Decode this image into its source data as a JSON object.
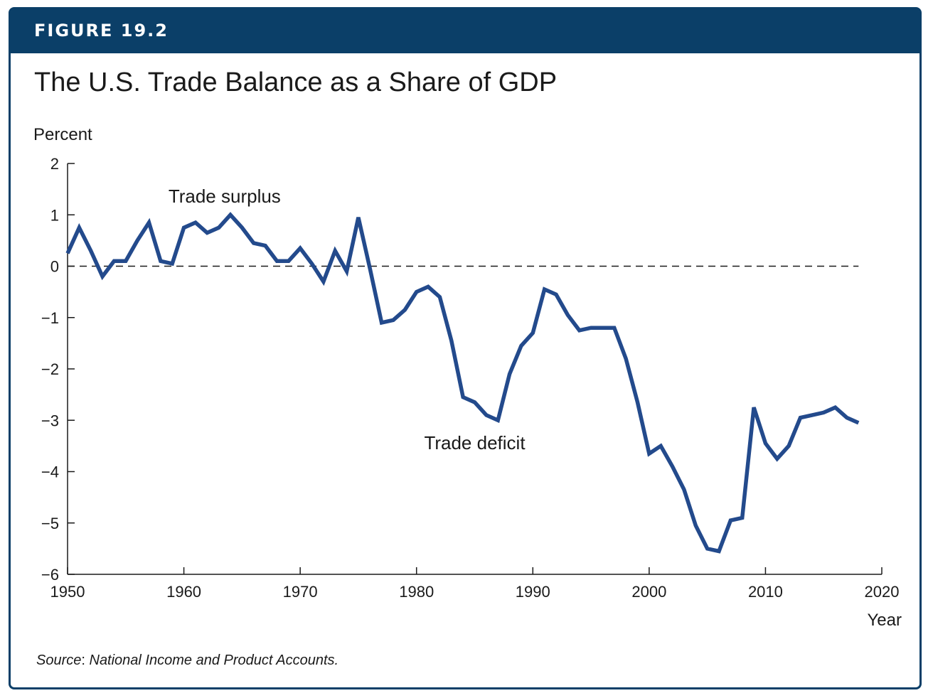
{
  "header": {
    "figure_label": "FIGURE 19.2",
    "title": "The U.S. Trade Balance as a Share of GDP"
  },
  "source": {
    "prefix": "Source",
    "separator": ":",
    "text": " National Income and Product Accounts."
  },
  "colors": {
    "header_bg": "#0b3f68",
    "line": "#234a8c",
    "axis": "#1a1a1a"
  },
  "chart_data": {
    "type": "line",
    "title": "The U.S. Trade Balance as a Share of GDP",
    "ylabel": "Percent",
    "xlabel": "Year",
    "xlim": [
      1950,
      2020
    ],
    "ylim": [
      -6,
      2
    ],
    "xticks": [
      1950,
      1960,
      1970,
      1980,
      1990,
      2000,
      2010,
      2020
    ],
    "yticks": [
      2,
      1,
      0,
      -1,
      -2,
      -3,
      -4,
      -5,
      -6
    ],
    "ytick_labels": [
      "2",
      "1",
      "0",
      "−1",
      "−2",
      "−3",
      "−4",
      "−5",
      "−6"
    ],
    "reference_line": {
      "y": 0,
      "style": "dashed"
    },
    "annotations": [
      {
        "text": "Trade surplus",
        "x": 1963.5,
        "y": 1.35
      },
      {
        "text": "Trade deficit",
        "x": 1985,
        "y": -3.45
      }
    ],
    "series": [
      {
        "x": [
          1950,
          1951,
          1952,
          1953,
          1954,
          1955,
          1956,
          1957,
          1958,
          1959,
          1960,
          1961,
          1962,
          1963,
          1964,
          1965,
          1966,
          1967,
          1968,
          1969,
          1970,
          1971,
          1972,
          1973,
          1974,
          1975,
          1976,
          1977,
          1978,
          1979,
          1980,
          1981,
          1982,
          1983,
          1984,
          1985,
          1986,
          1987,
          1988,
          1989,
          1990,
          1991,
          1992,
          1993,
          1994,
          1995,
          1996,
          1997,
          1998,
          1999,
          2000,
          2001,
          2002,
          2003,
          2004,
          2005,
          2006,
          2007,
          2008,
          2009,
          2010,
          2011,
          2012,
          2013,
          2014,
          2015,
          2016,
          2017,
          2018
        ],
        "values": [
          0.25,
          0.75,
          0.3,
          -0.2,
          0.1,
          0.1,
          0.5,
          0.85,
          0.1,
          0.05,
          0.75,
          0.85,
          0.65,
          0.75,
          1.0,
          0.75,
          0.45,
          0.4,
          0.1,
          0.1,
          0.35,
          0.05,
          -0.3,
          0.3,
          -0.1,
          0.95,
          -0.05,
          -1.1,
          -1.05,
          -0.85,
          -0.5,
          -0.4,
          -0.6,
          -1.45,
          -2.55,
          -2.65,
          -2.9,
          -3.0,
          -2.1,
          -1.55,
          -1.3,
          -0.45,
          -0.55,
          -0.95,
          -1.25,
          -1.2,
          -1.2,
          -1.2,
          -1.8,
          -2.65,
          -3.65,
          -3.5,
          -3.9,
          -4.35,
          -5.05,
          -5.5,
          -5.55,
          -4.95,
          -4.9,
          -2.75,
          -3.45,
          -3.75,
          -3.5,
          -2.95,
          -2.9,
          -2.85,
          -2.75,
          -2.95,
          -3.05
        ]
      }
    ]
  }
}
